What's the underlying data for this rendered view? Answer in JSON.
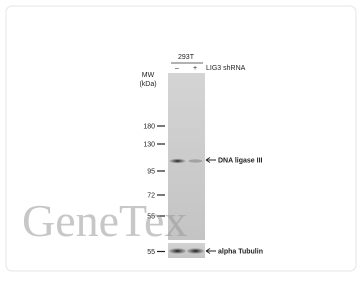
{
  "header": {
    "cell_line": "293T",
    "lanes": [
      "–",
      "+"
    ],
    "treatment": "LIG3 shRNA"
  },
  "mw": {
    "title": "MW",
    "unit": "(kDa)",
    "markers": [
      "180",
      "130",
      "95",
      "72",
      "55"
    ],
    "lower_marker": "55"
  },
  "bands": {
    "target": "DNA ligase III",
    "control": "alpha Tubulin"
  },
  "watermark": "GeneTex"
}
